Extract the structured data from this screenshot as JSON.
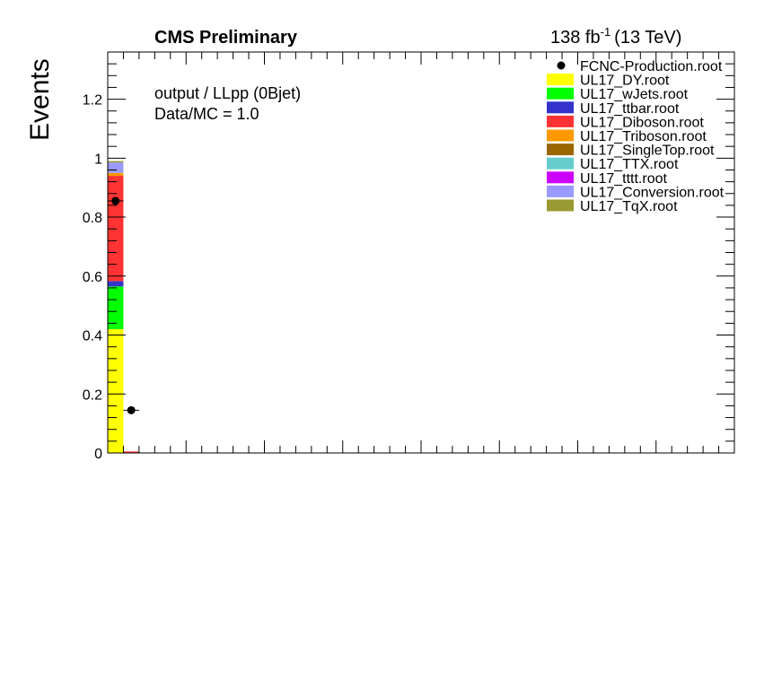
{
  "chart_data": {
    "type": "bar",
    "stacked": true,
    "title": "CMS Preliminary",
    "luminosity": "138 fb",
    "luminosity_exp": "-1",
    "energy": "(13 TeV)",
    "annotation_line1": "output / LLpp (0Bjet)",
    "annotation_line2": "Data/MC = 1.0",
    "ylabel": "Events",
    "ylim": [
      0,
      1.36
    ],
    "yticks": [
      0,
      0.2,
      0.4,
      0.6,
      0.8,
      1,
      1.2
    ],
    "ytick_labels": [
      "0",
      "0.2",
      "0.4",
      "0.6",
      "0.8",
      "1",
      "1.2"
    ],
    "n_bins": 40,
    "x_minor_per_major": 5,
    "series": [
      {
        "name": "UL17_DY.root",
        "color": "#ffff00",
        "values": [
          0.42,
          0.0
        ]
      },
      {
        "name": "UL17_wJets.root",
        "color": "#00ff00",
        "values": [
          0.145,
          0.0
        ]
      },
      {
        "name": "UL17_ttbar.root",
        "color": "#3333cc",
        "values": [
          0.018,
          0.0
        ]
      },
      {
        "name": "UL17_Diboson.root",
        "color": "#ff3333",
        "values": [
          0.357,
          0.005
        ]
      },
      {
        "name": "UL17_Triboson.root",
        "color": "#ff9900",
        "values": [
          0.01,
          0.0
        ]
      },
      {
        "name": "UL17_SingleTop.root",
        "color": "#996600",
        "values": [
          0.0,
          0.0
        ]
      },
      {
        "name": "UL17_TTX.root",
        "color": "#66cccc",
        "values": [
          0.0,
          0.0
        ]
      },
      {
        "name": "UL17_tttt.root",
        "color": "#cc00ff",
        "values": [
          0.0,
          0.0
        ]
      },
      {
        "name": "UL17_Conversion.root",
        "color": "#9999ff",
        "values": [
          0.035,
          0.0
        ]
      },
      {
        "name": "UL17_TqX.root",
        "color": "#999933",
        "values": [
          0.005,
          0.0
        ]
      }
    ],
    "data": {
      "name": "FCNC-Production.root",
      "color": "#000000",
      "bins": [
        0,
        1
      ],
      "values": [
        0.855,
        0.145
      ]
    },
    "legend_position": "top-right"
  }
}
